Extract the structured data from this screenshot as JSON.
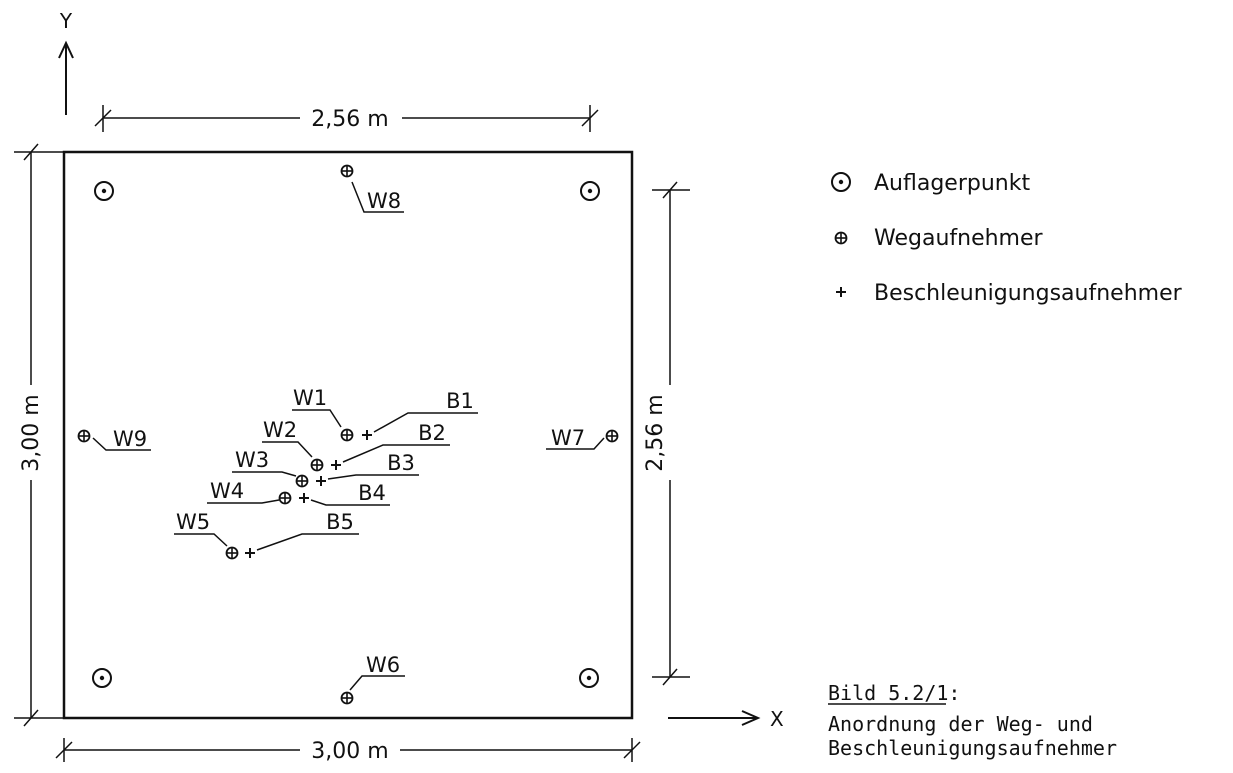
{
  "axes": {
    "x": "X",
    "y": "Y"
  },
  "dimensions": {
    "top": "2,56 m",
    "bottom": "3,00 m",
    "left": "3,00 m",
    "right": "2,56 m"
  },
  "sensors": {
    "W1": "W1",
    "W2": "W2",
    "W3": "W3",
    "W4": "W4",
    "W5": "W5",
    "W6": "W6",
    "W7": "W7",
    "W8": "W8",
    "W9": "W9",
    "B1": "B1",
    "B2": "B2",
    "B3": "B3",
    "B4": "B4",
    "B5": "B5"
  },
  "legend": {
    "support": "Auflagerpunkt",
    "displacement": "Wegaufnehmer",
    "acceleration": "Beschleunigungsaufnehmer"
  },
  "caption": {
    "title": "Bild 5.2/1:",
    "line1": "Anordnung der Weg- und",
    "line2": "Beschleunigungsaufnehmer"
  }
}
